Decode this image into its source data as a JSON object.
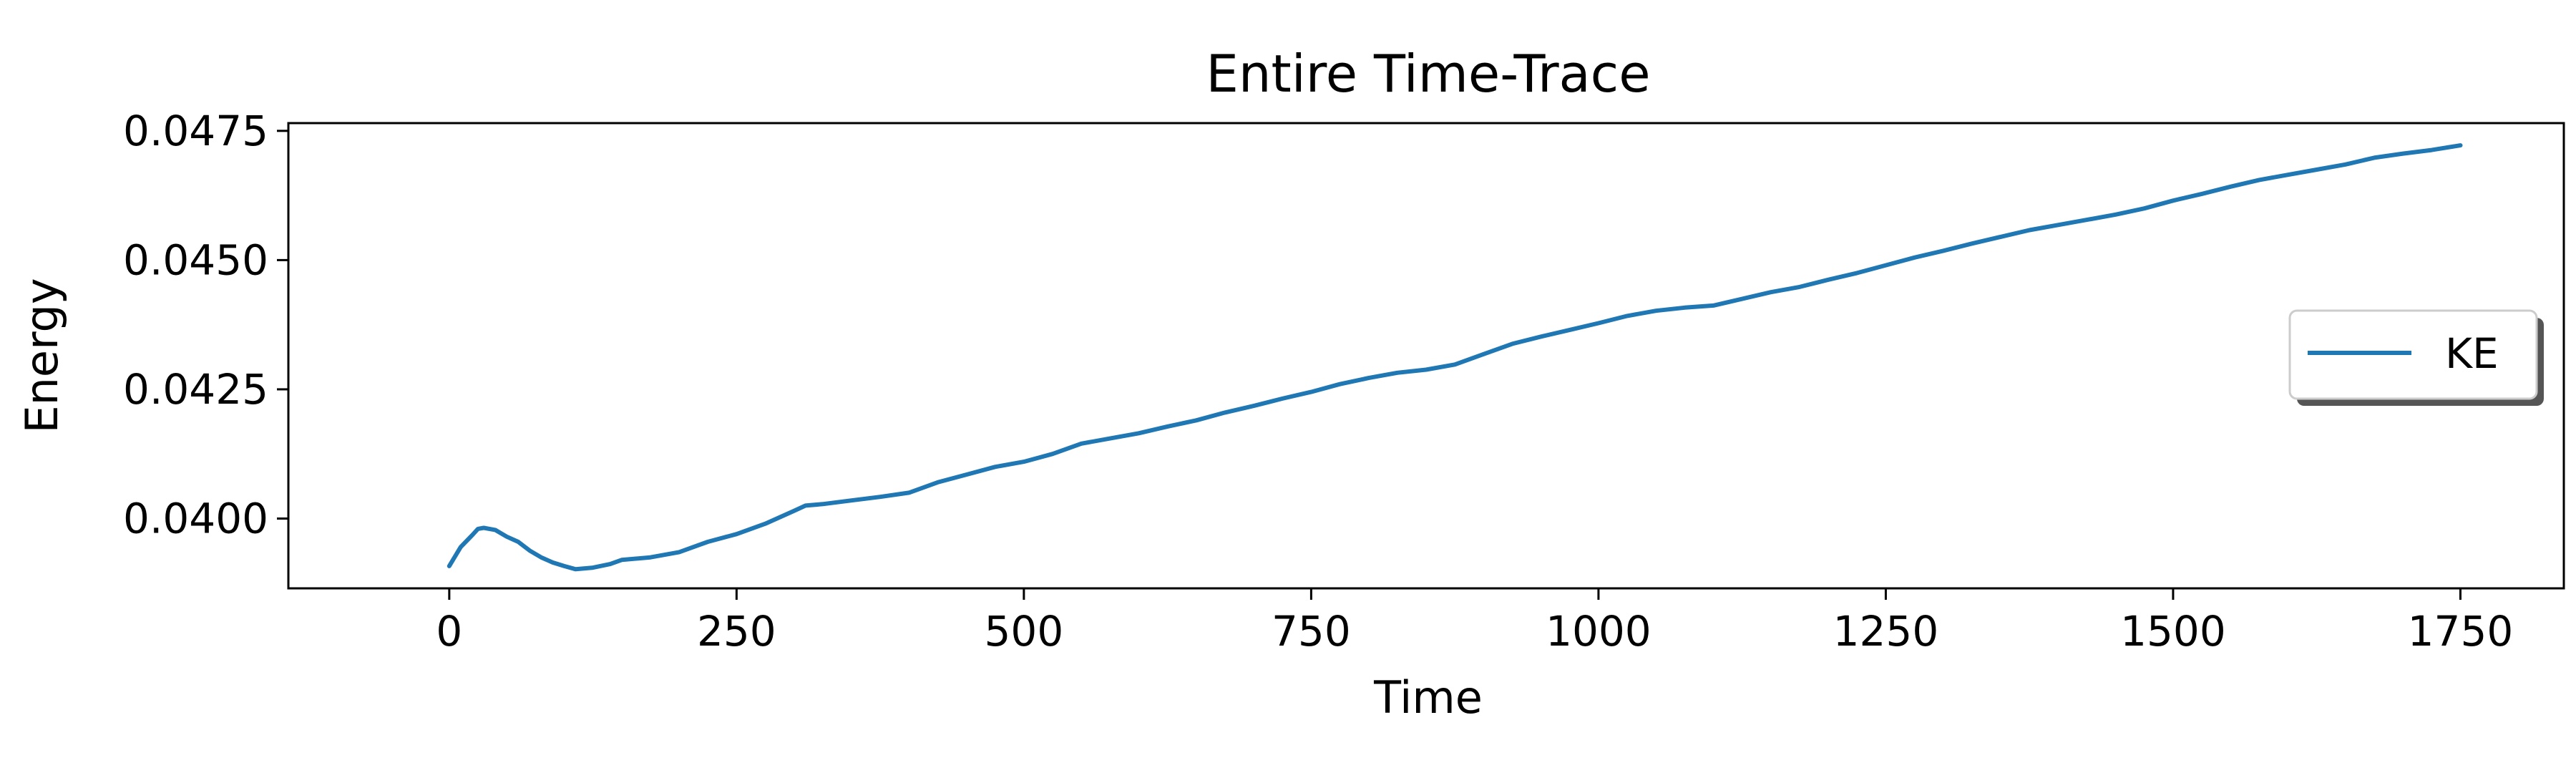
{
  "chart_data": {
    "type": "line",
    "title": "Entire Time-Trace",
    "xlabel": "Time",
    "ylabel": "Energy",
    "xlim": [
      -140,
      1840
    ],
    "ylim": [
      0.03865,
      0.04765
    ],
    "xticks": [
      0,
      250,
      500,
      750,
      1000,
      1250,
      1500,
      1750
    ],
    "xtick_labels": [
      "0",
      "250",
      "500",
      "750",
      "1000",
      "1250",
      "1500",
      "1750"
    ],
    "yticks": [
      0.04,
      0.0425,
      0.045,
      0.0475
    ],
    "ytick_labels": [
      "0.0400",
      "0.0425",
      "0.0450",
      "0.0475"
    ],
    "grid": false,
    "legend_position": "center-right",
    "series": [
      {
        "name": "KE",
        "color": "#1f77b4",
        "x": [
          0,
          10,
          20,
          25,
          30,
          40,
          50,
          60,
          70,
          80,
          90,
          100,
          110,
          125,
          140,
          150,
          175,
          200,
          225,
          250,
          275,
          300,
          310,
          325,
          350,
          375,
          400,
          425,
          450,
          475,
          500,
          525,
          550,
          575,
          600,
          625,
          650,
          675,
          700,
          725,
          750,
          775,
          800,
          825,
          850,
          875,
          900,
          925,
          950,
          975,
          1000,
          1025,
          1050,
          1075,
          1100,
          1125,
          1150,
          1175,
          1200,
          1225,
          1250,
          1275,
          1300,
          1325,
          1350,
          1375,
          1400,
          1425,
          1450,
          1475,
          1500,
          1525,
          1550,
          1575,
          1600,
          1625,
          1650,
          1675,
          1700,
          1725,
          1750
        ],
        "y": [
          0.03908,
          0.03945,
          0.03968,
          0.0398,
          0.03982,
          0.03978,
          0.03965,
          0.03955,
          0.03938,
          0.03925,
          0.03915,
          0.03908,
          0.03902,
          0.03905,
          0.03912,
          0.0392,
          0.03925,
          0.03935,
          0.03955,
          0.0397,
          0.0399,
          0.04015,
          0.04025,
          0.04028,
          0.04035,
          0.04042,
          0.0405,
          0.0407,
          0.04085,
          0.041,
          0.0411,
          0.04125,
          0.04145,
          0.04155,
          0.04165,
          0.04178,
          0.0419,
          0.04205,
          0.04218,
          0.04232,
          0.04245,
          0.0426,
          0.04272,
          0.04282,
          0.04288,
          0.04298,
          0.04318,
          0.04338,
          0.04352,
          0.04365,
          0.04378,
          0.04392,
          0.04402,
          0.04408,
          0.04412,
          0.04425,
          0.04438,
          0.04448,
          0.04462,
          0.04475,
          0.0449,
          0.04505,
          0.04518,
          0.04532,
          0.04545,
          0.04558,
          0.04568,
          0.04578,
          0.04588,
          0.046,
          0.04615,
          0.04628,
          0.04642,
          0.04655,
          0.04665,
          0.04675,
          0.04685,
          0.04698,
          0.04706,
          0.04713,
          0.04722
        ]
      }
    ]
  }
}
